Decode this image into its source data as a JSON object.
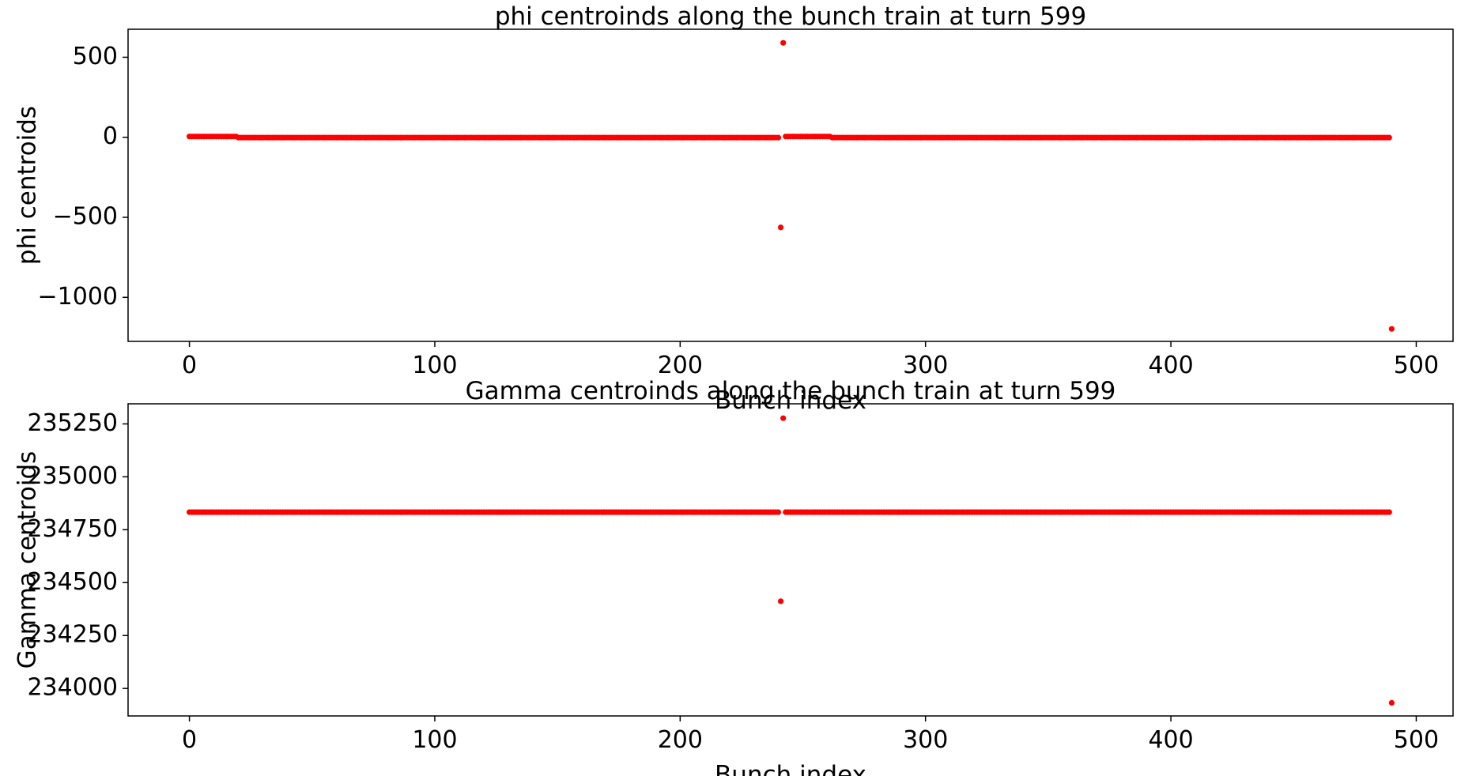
{
  "colors": {
    "marker": "#ff0000",
    "axes": "#000000",
    "background": "#ffffff"
  },
  "chart_data": [
    {
      "type": "scatter",
      "title": "phi centroinds along the bunch train at turn 599",
      "xlabel": "Bunch index",
      "ylabel": "phi centroids",
      "xlim": [
        -25,
        515
      ],
      "ylim": [
        -1275,
        675
      ],
      "xticks": [
        0,
        100,
        200,
        300,
        400,
        500
      ],
      "yticks": [
        500,
        0,
        -500,
        -1000
      ],
      "ytick_labels": [
        "500",
        "0",
        "−500",
        "−1000"
      ],
      "grid": false,
      "series": [
        {
          "marker_color": "#ff0000",
          "segments": [
            {
              "x_start": 0,
              "x_end": 19,
              "y": 5
            },
            {
              "x_start": 20,
              "x_end": 240,
              "y": -2
            },
            {
              "x_start": 243,
              "x_end": 261,
              "y": 5
            },
            {
              "x_start": 262,
              "x_end": 489,
              "y": -2
            }
          ],
          "outliers": [
            {
              "x": 242,
              "y": 590
            },
            {
              "x": 241,
              "y": -563
            },
            {
              "x": 490,
              "y": -1197
            }
          ]
        }
      ]
    },
    {
      "type": "scatter",
      "title": "Gamma centroinds along the bunch train at turn 599",
      "xlabel": "Bunch index",
      "ylabel": "Gamma centroids",
      "xlim": [
        -25,
        515
      ],
      "ylim": [
        233870,
        235345
      ],
      "xticks": [
        0,
        100,
        200,
        300,
        400,
        500
      ],
      "yticks": [
        235250,
        235000,
        234750,
        234500,
        234250,
        234000
      ],
      "ytick_labels": [
        "235250",
        "235000",
        "234750",
        "234500",
        "234250",
        "234000"
      ],
      "grid": false,
      "series": [
        {
          "marker_color": "#ff0000",
          "segments": [
            {
              "x_start": 0,
              "x_end": 240,
              "y": 234833
            },
            {
              "x_start": 243,
              "x_end": 489,
              "y": 234833
            }
          ],
          "outliers": [
            {
              "x": 242,
              "y": 235277
            },
            {
              "x": 241,
              "y": 234412
            },
            {
              "x": 490,
              "y": 233932
            }
          ]
        }
      ]
    }
  ]
}
